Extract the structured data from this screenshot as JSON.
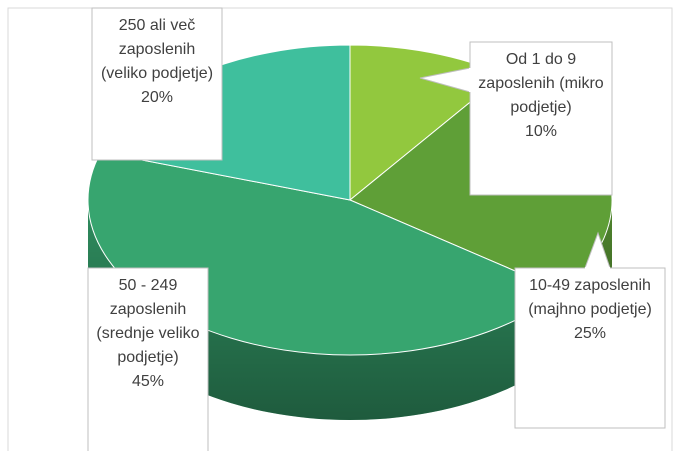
{
  "chart_data": {
    "type": "pie",
    "categories": [
      "Od 1 do 9 zaposlenih (mikro podjetje)",
      "10-49 zaposlenih (majhno podjetje)",
      "50 - 249 zaposlenih (srednje veliko podjetje)",
      "250 ali več zaposlenih (veliko podjetje)"
    ],
    "values": [
      10,
      25,
      45,
      20
    ],
    "value_labels": [
      "10%",
      "25%",
      "45%",
      "20%"
    ],
    "colors": [
      "#92c83e",
      "#5f9f37",
      "#37a56f",
      "#3fbf9d"
    ]
  }
}
